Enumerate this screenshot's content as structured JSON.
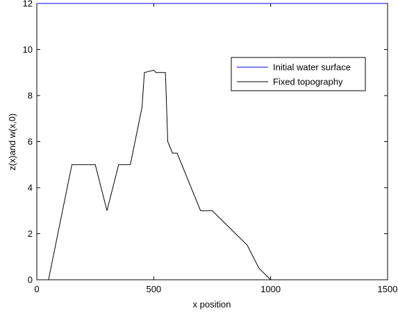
{
  "chart_data": {
    "type": "line",
    "title": "",
    "xlabel": "x position",
    "ylabel": "z(x)and w(x,0)",
    "xlim": [
      0,
      1500
    ],
    "ylim": [
      0,
      12
    ],
    "xticks": [
      0,
      500,
      1000,
      1500
    ],
    "yticks": [
      0,
      2,
      4,
      6,
      8,
      10,
      12
    ],
    "grid": false,
    "legend_position": "top-right",
    "series": [
      {
        "name": "Initial water surface",
        "color": "#0000ff",
        "x": [
          0,
          1500
        ],
        "y": [
          12,
          12
        ]
      },
      {
        "name": "Fixed topography",
        "color": "#000000",
        "x": [
          0,
          50,
          150,
          250,
          300,
          350,
          400,
          450,
          460,
          500,
          510,
          550,
          560,
          580,
          600,
          700,
          750,
          800,
          850,
          900,
          950,
          1000,
          1500
        ],
        "y": [
          0,
          0,
          5,
          5,
          3,
          5,
          5,
          7.5,
          9,
          9.1,
          9,
          9,
          6,
          5.5,
          5.5,
          3,
          3,
          2.5,
          2,
          1.5,
          0.5,
          0,
          0
        ]
      }
    ]
  }
}
